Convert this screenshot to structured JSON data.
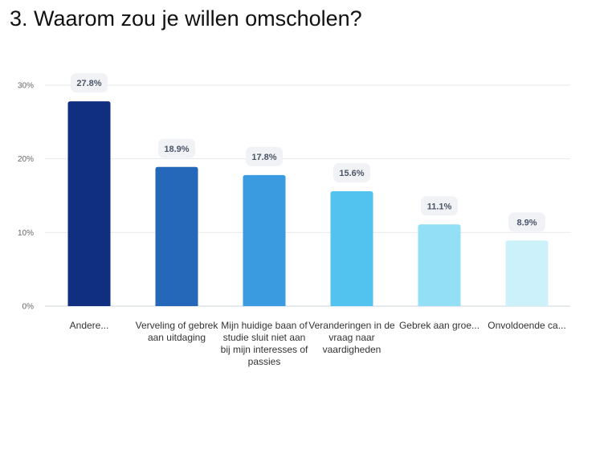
{
  "title": "3. Waarom zou je willen omscholen?",
  "chart_data": {
    "type": "bar",
    "categories": [
      "Andere...",
      "Verveling of gebrek aan uitdaging",
      "Mijn huidige baan of studie sluit niet aan bij mijn interesses of passies",
      "Veranderingen in de vraag naar vaardigheden",
      "Gebrek aan groe...",
      "Onvoldoende ca..."
    ],
    "values": [
      27.8,
      18.9,
      17.8,
      15.6,
      11.1,
      8.9
    ],
    "data_labels": [
      "27.8%",
      "18.9%",
      "17.8%",
      "15.6%",
      "11.1%",
      "8.9%"
    ],
    "colors": [
      "#102f80",
      "#2567b8",
      "#3a9be0",
      "#52c2ee",
      "#93dff5",
      "#cdf1fa"
    ],
    "yticks": [
      0,
      10,
      20,
      30
    ],
    "ytick_labels": [
      "0%",
      "10%",
      "20%",
      "30%"
    ],
    "ylim": [
      0,
      30
    ],
    "grid": true,
    "legend": "none"
  }
}
